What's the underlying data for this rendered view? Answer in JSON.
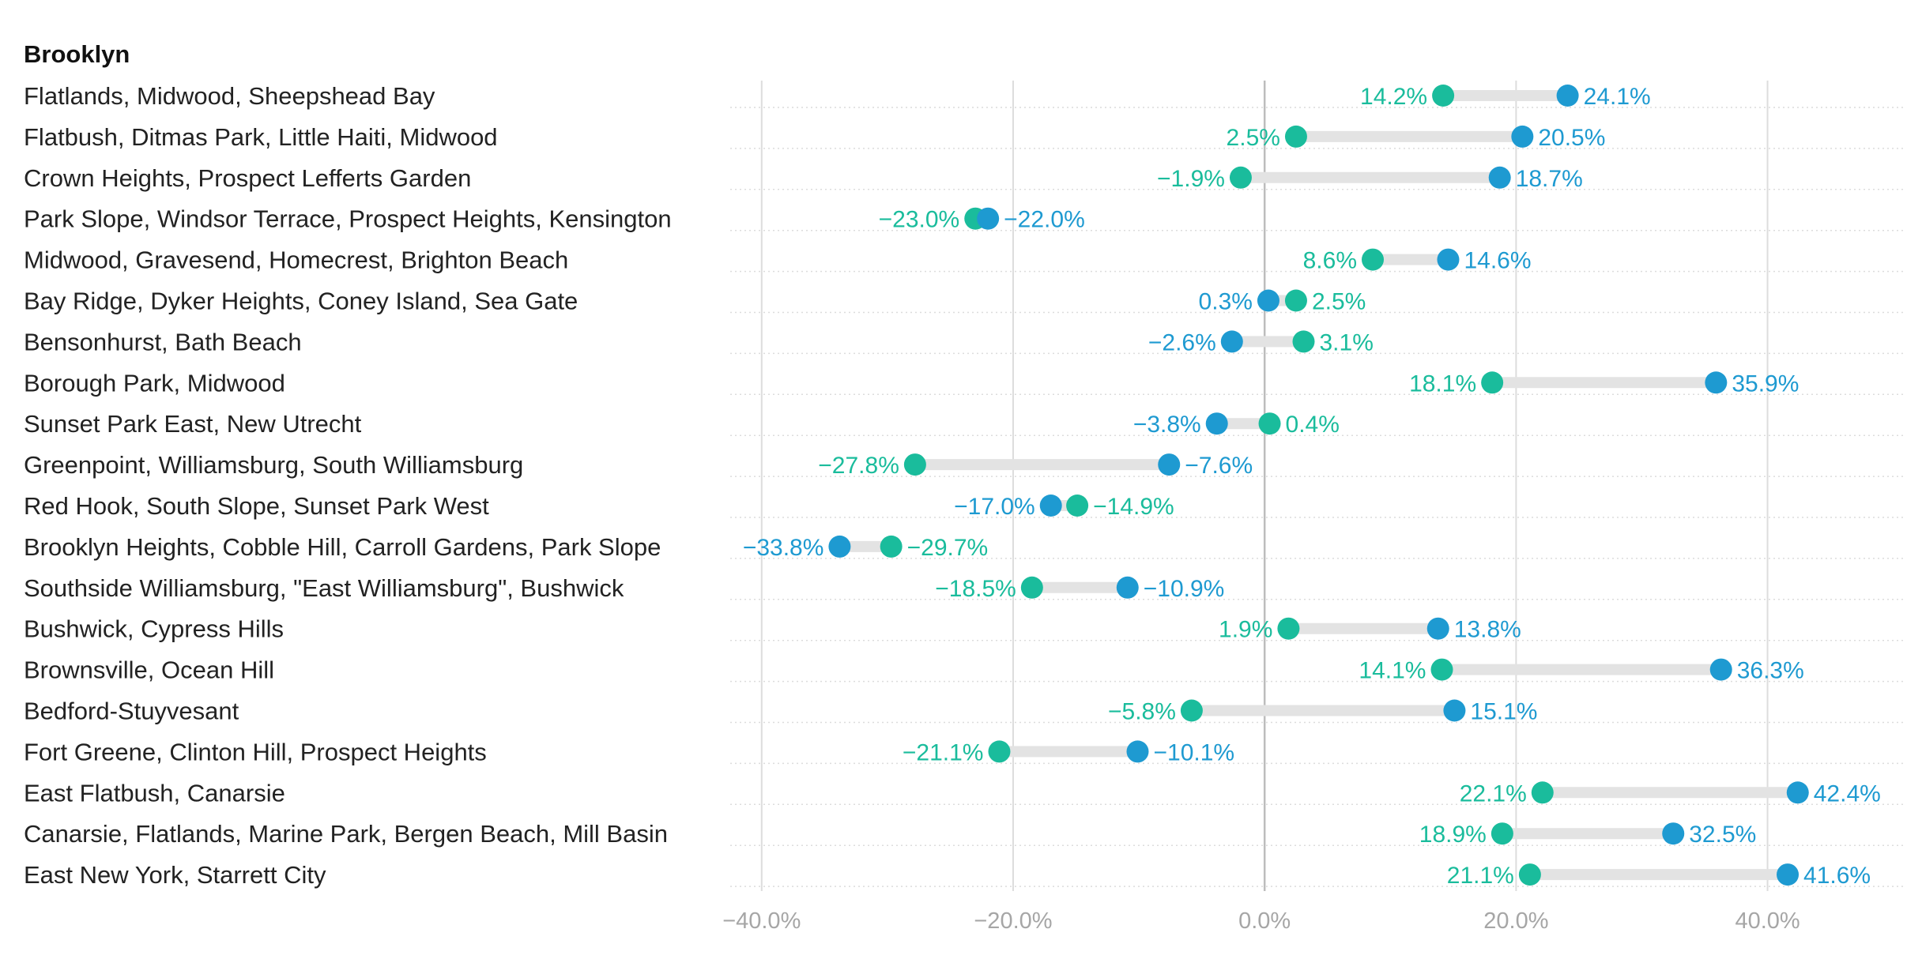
{
  "chart_data": {
    "type": "dot-plot",
    "title": "Brooklyn",
    "xlim": [
      -42.5,
      50.9
    ],
    "xticks": [
      {
        "value": -40,
        "label": "−40.0%"
      },
      {
        "value": -20,
        "label": "−20.0%"
      },
      {
        "value": 0,
        "label": "0.0%"
      },
      {
        "value": 20,
        "label": "20.0%"
      },
      {
        "value": 40,
        "label": "40.0%"
      }
    ],
    "colors": {
      "green": "#1abc9c",
      "blue": "#1e9ad1",
      "connector": "#e3e3e3",
      "grid": "#dddddd",
      "zero": "#bdbdbd"
    },
    "rows": [
      {
        "label": "Flatlands, Midwood, Sheepshead Bay",
        "green": 14.2,
        "green_label": "14.2%",
        "blue": 24.1,
        "blue_label": "24.1%"
      },
      {
        "label": "Flatbush, Ditmas Park, Little Haiti, Midwood",
        "green": 2.5,
        "green_label": "2.5%",
        "blue": 20.5,
        "blue_label": "20.5%"
      },
      {
        "label": "Crown Heights, Prospect Lefferts Garden",
        "green": -1.9,
        "green_label": "−1.9%",
        "blue": 18.7,
        "blue_label": "18.7%"
      },
      {
        "label": "Park Slope, Windsor Terrace, Prospect Heights, Kensington",
        "green": -23.0,
        "green_label": "−23.0%",
        "blue": -22.0,
        "blue_label": "−22.0%"
      },
      {
        "label": "Midwood, Gravesend, Homecrest, Brighton Beach",
        "green": 8.6,
        "green_label": "8.6%",
        "blue": 14.6,
        "blue_label": "14.6%"
      },
      {
        "label": "Bay Ridge, Dyker Heights, Coney Island, Sea Gate",
        "green": 2.5,
        "green_label": "2.5%",
        "blue": 0.3,
        "blue_label": "0.3%"
      },
      {
        "label": "Bensonhurst, Bath Beach",
        "green": 3.1,
        "green_label": "3.1%",
        "blue": -2.6,
        "blue_label": "−2.6%"
      },
      {
        "label": "Borough Park, Midwood",
        "green": 18.1,
        "green_label": "18.1%",
        "blue": 35.9,
        "blue_label": "35.9%"
      },
      {
        "label": "Sunset Park East, New Utrecht",
        "green": 0.4,
        "green_label": "0.4%",
        "blue": -3.8,
        "blue_label": "−3.8%"
      },
      {
        "label": "Greenpoint, Williamsburg, South Williamsburg",
        "green": -27.8,
        "green_label": "−27.8%",
        "blue": -7.6,
        "blue_label": "−7.6%"
      },
      {
        "label": "Red Hook, South Slope, Sunset Park West",
        "green": -14.9,
        "green_label": "−14.9%",
        "blue": -17.0,
        "blue_label": "−17.0%"
      },
      {
        "label": "Brooklyn Heights, Cobble Hill, Carroll Gardens, Park Slope",
        "green": -29.7,
        "green_label": "−29.7%",
        "blue": -33.8,
        "blue_label": "−33.8%"
      },
      {
        "label": "Southside Williamsburg, \"East Williamsburg\", Bushwick",
        "green": -18.5,
        "green_label": "−18.5%",
        "blue": -10.9,
        "blue_label": "−10.9%"
      },
      {
        "label": "Bushwick, Cypress Hills",
        "green": 1.9,
        "green_label": "1.9%",
        "blue": 13.8,
        "blue_label": "13.8%"
      },
      {
        "label": "Brownsville, Ocean Hill",
        "green": 14.1,
        "green_label": "14.1%",
        "blue": 36.3,
        "blue_label": "36.3%"
      },
      {
        "label": "Bedford-Stuyvesant",
        "green": -5.8,
        "green_label": "−5.8%",
        "blue": 15.1,
        "blue_label": "15.1%"
      },
      {
        "label": "Fort Greene, Clinton Hill, Prospect Heights",
        "green": -21.1,
        "green_label": "−21.1%",
        "blue": -10.1,
        "blue_label": "−10.1%"
      },
      {
        "label": "East Flatbush, Canarsie",
        "green": 22.1,
        "green_label": "22.1%",
        "blue": 42.4,
        "blue_label": "42.4%"
      },
      {
        "label": "Canarsie, Flatlands, Marine Park, Bergen Beach, Mill Basin",
        "green": 18.9,
        "green_label": "18.9%",
        "blue": 32.5,
        "blue_label": "32.5%"
      },
      {
        "label": "East New York, Starrett City",
        "green": 21.1,
        "green_label": "21.1%",
        "blue": 41.6,
        "blue_label": "41.6%"
      }
    ]
  }
}
